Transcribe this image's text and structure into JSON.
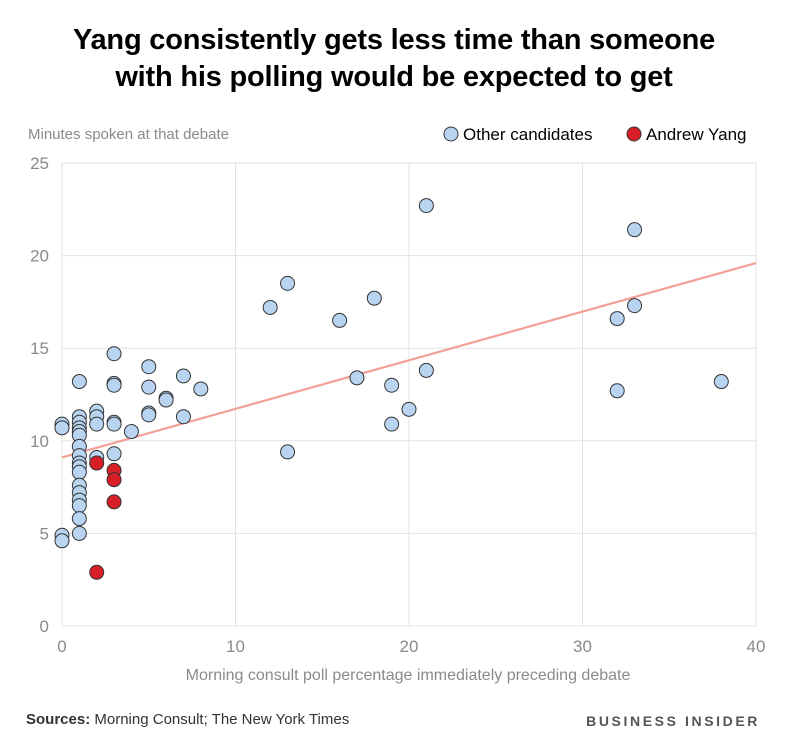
{
  "header": {
    "title_line1": "Yang consistently gets less time than someone",
    "title_line2": "with his polling would be expected to get"
  },
  "footer": {
    "sources_label": "Sources:",
    "sources_text": "Morning Consult; The New York Times",
    "brand": "BUSINESS INSIDER"
  },
  "colors": {
    "other_fill": "#b8d4f0",
    "yang_fill": "#d91f26",
    "trend": "#f2a097",
    "grid": "#e3e3e3",
    "axis_text": "#8a8a8a"
  },
  "chart_data": {
    "type": "scatter",
    "ylabel": "Minutes spoken at that debate",
    "xlabel": "Morning consult poll percentage immediately preceding debate",
    "xlim": [
      0,
      40
    ],
    "ylim": [
      0,
      25
    ],
    "xticks": [
      0,
      10,
      20,
      30,
      40
    ],
    "yticks": [
      0,
      5,
      10,
      15,
      20,
      25
    ],
    "grid": true,
    "legend_position": "top-right",
    "trendline": {
      "x": [
        0,
        40
      ],
      "y": [
        9.1,
        19.6
      ]
    },
    "series": [
      {
        "name": "Other candidates",
        "points": [
          [
            0,
            10.9
          ],
          [
            0,
            10.7
          ],
          [
            0,
            4.9
          ],
          [
            0,
            4.6
          ],
          [
            1,
            13.2
          ],
          [
            1,
            11.3
          ],
          [
            1,
            11.0
          ],
          [
            1,
            10.7
          ],
          [
            1,
            10.5
          ],
          [
            1,
            10.3
          ],
          [
            1,
            9.7
          ],
          [
            1,
            9.2
          ],
          [
            1,
            8.8
          ],
          [
            1,
            8.6
          ],
          [
            1,
            8.3
          ],
          [
            1,
            7.6
          ],
          [
            1,
            7.2
          ],
          [
            1,
            6.8
          ],
          [
            1,
            6.5
          ],
          [
            1,
            5.8
          ],
          [
            1,
            5.0
          ],
          [
            2,
            11.6
          ],
          [
            2,
            11.3
          ],
          [
            2,
            10.9
          ],
          [
            2,
            9.1
          ],
          [
            3,
            14.7
          ],
          [
            3,
            13.1
          ],
          [
            3,
            13.0
          ],
          [
            3,
            11.0
          ],
          [
            3,
            10.9
          ],
          [
            3,
            9.3
          ],
          [
            4,
            10.5
          ],
          [
            5,
            14.0
          ],
          [
            5,
            12.9
          ],
          [
            5,
            11.5
          ],
          [
            5,
            11.4
          ],
          [
            6,
            12.3
          ],
          [
            6,
            12.2
          ],
          [
            7,
            13.5
          ],
          [
            7,
            11.3
          ],
          [
            8,
            12.8
          ],
          [
            12,
            17.2
          ],
          [
            13,
            18.5
          ],
          [
            13,
            9.4
          ],
          [
            16,
            16.5
          ],
          [
            17,
            13.4
          ],
          [
            18,
            17.7
          ],
          [
            19,
            13.0
          ],
          [
            19,
            10.9
          ],
          [
            20,
            11.7
          ],
          [
            21,
            22.7
          ],
          [
            21,
            13.8
          ],
          [
            32,
            16.6
          ],
          [
            32,
            12.7
          ],
          [
            33,
            21.4
          ],
          [
            33,
            17.3
          ],
          [
            38,
            13.2
          ]
        ]
      },
      {
        "name": "Andrew Yang",
        "points": [
          [
            2,
            8.8
          ],
          [
            3,
            8.4
          ],
          [
            3,
            7.9
          ],
          [
            3,
            6.7
          ],
          [
            2,
            2.9
          ]
        ]
      }
    ]
  }
}
